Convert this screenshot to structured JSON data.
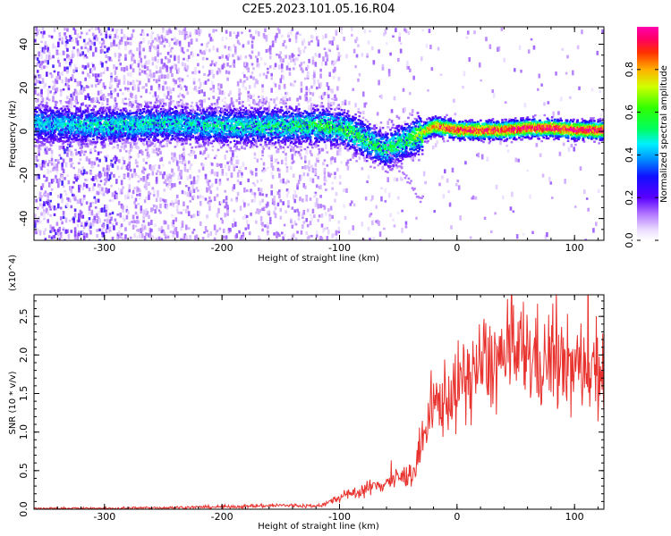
{
  "title": "C2E5.2023.101.05.16.R04",
  "colors": {
    "snr_line": "#e8322e",
    "axes": "#000000",
    "background": "#ffffff"
  },
  "chart_data": [
    {
      "type": "heatmap",
      "xlabel": "Height of straight line (km)",
      "ylabel": "Frequency (Hz)",
      "xlim": [
        -360,
        125
      ],
      "ylim": [
        -50,
        48
      ],
      "x_ticks": [
        -300,
        -200,
        -100,
        0,
        100
      ],
      "x_tick_labels": [
        "-300",
        "-200",
        "-100",
        "0",
        "100"
      ],
      "y_ticks": [
        -40,
        -20,
        0,
        20,
        40
      ],
      "y_tick_labels": [
        "-40",
        "-20",
        "0",
        "20",
        "40"
      ],
      "colorbar": {
        "label": "Normalized spectral amplitude",
        "range": [
          0,
          1
        ],
        "ticks": [
          0.0,
          0.2,
          0.4,
          0.6,
          0.8
        ],
        "tick_labels": [
          "0.0",
          "0.2",
          "0.4",
          "0.6",
          "0.8"
        ],
        "colormap": "rainbow (white-violet-blue-cyan-green-yellow-red-magenta)"
      },
      "ridge_center_hz": {
        "x": [
          -360,
          -300,
          -250,
          -200,
          -150,
          -120,
          -100,
          -90,
          -80,
          -70,
          -60,
          -50,
          -40,
          -30,
          -20,
          -10,
          0,
          20,
          40,
          60,
          80,
          100,
          125
        ],
        "y": [
          4,
          3,
          4,
          3,
          3,
          3,
          2,
          0,
          -3,
          -6,
          -8,
          -5,
          -3,
          0,
          3,
          2,
          1,
          1,
          1,
          2,
          2,
          1,
          1
        ]
      },
      "ridge_amplitude": {
        "x": [
          -360,
          -300,
          -200,
          -140,
          -100,
          -80,
          -60,
          -40,
          -20,
          0,
          40,
          80,
          125
        ],
        "y": [
          0.35,
          0.4,
          0.4,
          0.45,
          0.5,
          0.5,
          0.45,
          0.5,
          0.8,
          0.85,
          0.9,
          0.9,
          0.9
        ]
      }
    },
    {
      "type": "line",
      "xlabel": "Height of straight line (km)",
      "ylabel": "SNR (10 * v/v)",
      "y_multiplier": "(x10^4)",
      "xlim": [
        -360,
        125
      ],
      "ylim": [
        0,
        2.78
      ],
      "x_ticks": [
        -300,
        -200,
        -100,
        0,
        100
      ],
      "x_tick_labels": [
        "-300",
        "-200",
        "-100",
        "0",
        "100"
      ],
      "y_ticks": [
        0.0,
        0.5,
        1.0,
        1.5,
        2.0,
        2.5
      ],
      "y_tick_labels": [
        "0.0",
        "0.5",
        "1.0",
        "1.5",
        "2.0",
        "2.5"
      ],
      "series": [
        {
          "x": [
            -360,
            -300,
            -250,
            -200,
            -150,
            -120,
            -110,
            -100,
            -90,
            -80,
            -70,
            -60,
            -50,
            -40,
            -35,
            -30,
            -25,
            -20,
            -15,
            -10,
            -5,
            0,
            10,
            20,
            30,
            40,
            50,
            60,
            70,
            80,
            90,
            100,
            110,
            120,
            125
          ],
          "y": [
            0.01,
            0.01,
            0.02,
            0.03,
            0.05,
            0.04,
            0.08,
            0.15,
            0.2,
            0.25,
            0.3,
            0.35,
            0.4,
            0.45,
            0.55,
            0.8,
            1.1,
            1.3,
            1.4,
            1.45,
            1.5,
            1.55,
            1.75,
            1.85,
            1.9,
            1.95,
            2.0,
            2.05,
            1.9,
            1.95,
            1.85,
            1.8,
            1.9,
            1.85,
            1.8
          ]
        }
      ]
    }
  ]
}
